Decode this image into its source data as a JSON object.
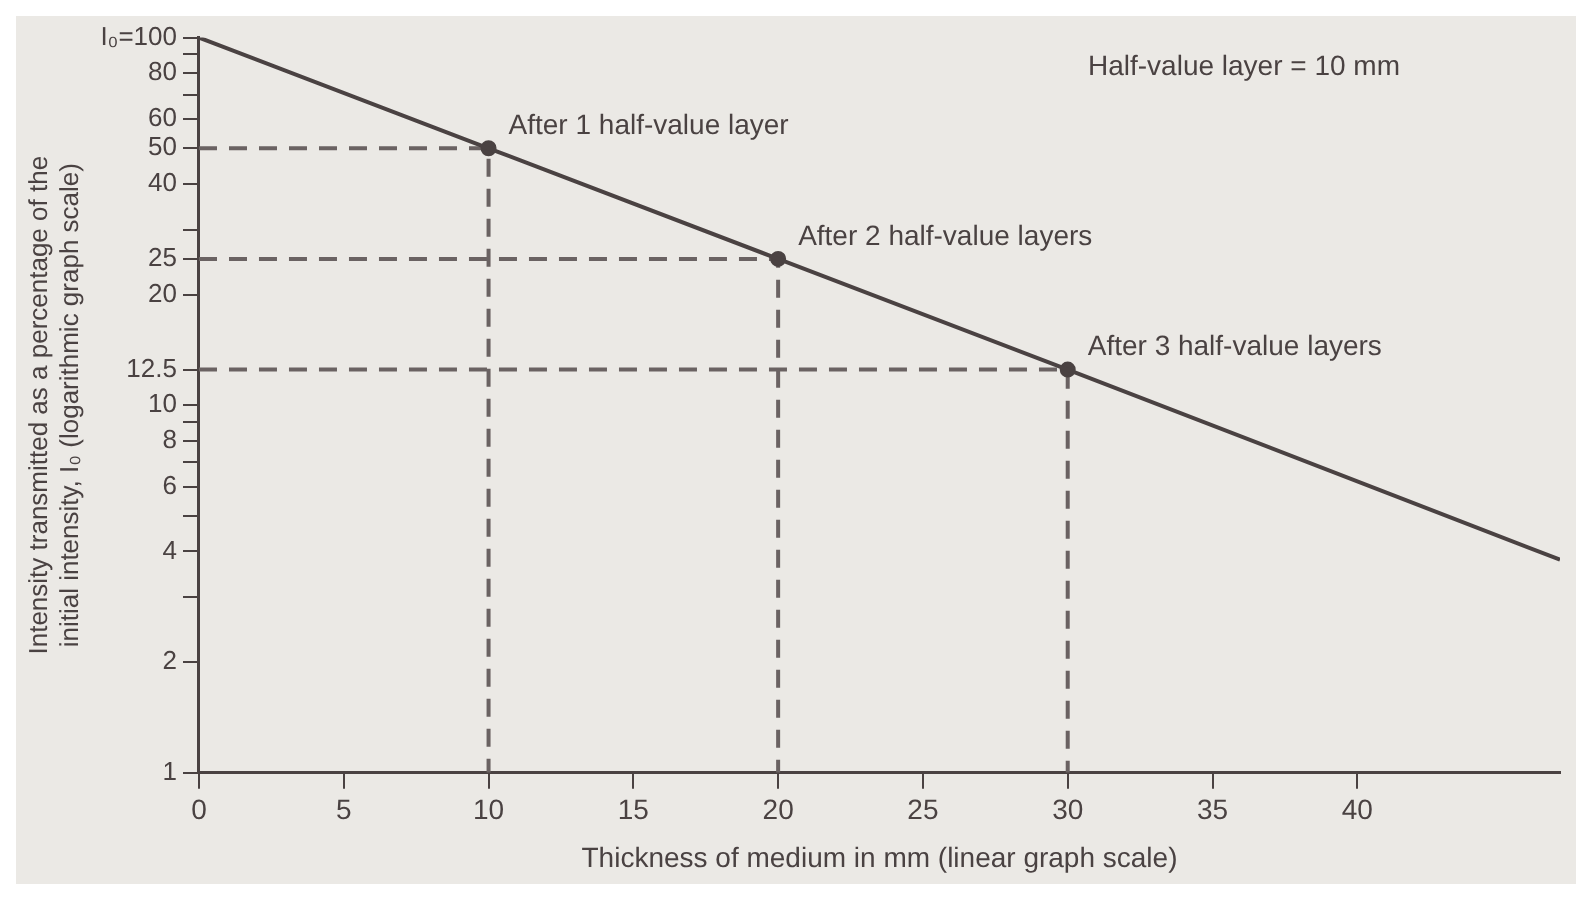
{
  "chart_data": {
    "type": "line",
    "xlabel": "Thickness of medium in mm (linear graph scale)",
    "ylabel": "Intensity transmitted as a percentage of the initial intensity, I₀ (logarithmic graph scale)",
    "x": [
      0,
      10,
      20,
      30,
      47
    ],
    "series": [
      {
        "color": "#4a4242",
        "values": [
          100,
          50,
          25,
          12.5,
          3.8
        ],
        "marker": "none",
        "line_style": "solid"
      },
      {
        "type": "scatter",
        "color": "#4a4242",
        "x": [
          10,
          20,
          30
        ],
        "values": [
          50,
          25,
          12.5
        ],
        "marker": "circle"
      },
      {
        "type": "line",
        "color": "#6a6262",
        "x": [
          0,
          10,
          10
        ],
        "values": [
          50,
          50,
          1
        ],
        "marker": "none",
        "line_style": "dashed"
      },
      {
        "type": "line",
        "color": "#6a6262",
        "x": [
          0,
          20,
          20
        ],
        "values": [
          25,
          25,
          1
        ],
        "marker": "none",
        "line_style": "dashed"
      },
      {
        "type": "line",
        "color": "#6a6262",
        "x": [
          0,
          30,
          30
        ],
        "values": [
          12.5,
          12.5,
          1
        ],
        "marker": "none",
        "line_style": "dashed"
      }
    ],
    "log": "y",
    "xlim": [
      0,
      47
    ],
    "xticks": [
      0,
      5,
      10,
      15,
      20,
      25,
      30,
      35,
      40
    ],
    "ylim": [
      1,
      100
    ],
    "yticks": [
      1,
      2,
      {
        "value": 3,
        "label": null
      },
      4,
      {
        "value": 5,
        "label": null
      },
      6,
      {
        "value": 7,
        "label": null
      },
      8,
      {
        "value": 9,
        "label": null
      },
      10,
      12.5,
      20,
      25,
      {
        "value": 30,
        "label": null
      },
      40,
      50,
      60,
      {
        "value": 70,
        "label": null
      },
      80,
      {
        "value": 90,
        "label": null
      },
      {
        "value": 100,
        "label": "I₀=100"
      }
    ],
    "grid": false,
    "legend": false,
    "annotations": [
      {
        "text": "After 1 half-value layer",
        "x": 10,
        "y": 50
      },
      {
        "text": "After 2 half-value layers",
        "x": 20,
        "y": 25
      },
      {
        "text": "After 3 half-value layers",
        "x": 30,
        "y": 12.5
      },
      "Half-value layer = 10 mm"
    ]
  }
}
